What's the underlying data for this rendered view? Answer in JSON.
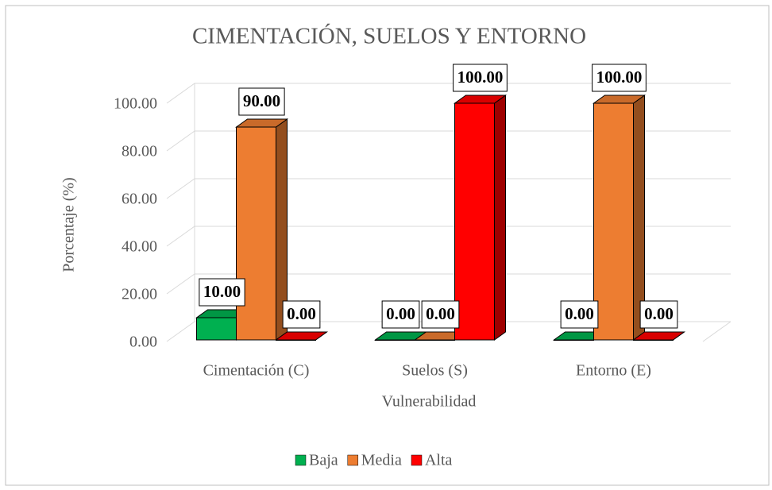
{
  "chart_data": {
    "type": "bar3d",
    "title": "CIMENTACIÓN, SUELOS Y ENTORNO",
    "x_label": "Vulnerabilidad",
    "y_label": "Porcentaje (%)",
    "categories": [
      "Cimentación (C)",
      "Suelos (S)",
      "Entorno (E)"
    ],
    "series": [
      {
        "name": "Baja",
        "color": "#00b050",
        "values": [
          10,
          0,
          0
        ],
        "value_labels": [
          "10.00",
          "0.00",
          "0.00"
        ]
      },
      {
        "name": "Media",
        "color": "#ed7d31",
        "values": [
          90,
          0,
          100
        ],
        "value_labels": [
          "90.00",
          "0.00",
          "100.00"
        ]
      },
      {
        "name": "Alta",
        "color": "#ff0000",
        "values": [
          0,
          100,
          0
        ],
        "value_labels": [
          "0.00",
          "100.00",
          "0.00"
        ]
      }
    ],
    "ylim": [
      0,
      100
    ],
    "yticks": [
      {
        "value": 0,
        "label": "0.00"
      },
      {
        "value": 20,
        "label": "20.00"
      },
      {
        "value": 40,
        "label": "40.00"
      },
      {
        "value": 60,
        "label": "60.00"
      },
      {
        "value": 80,
        "label": "80.00"
      },
      {
        "value": 100,
        "label": "100.00"
      }
    ],
    "grid": true,
    "legend": "bottom"
  }
}
